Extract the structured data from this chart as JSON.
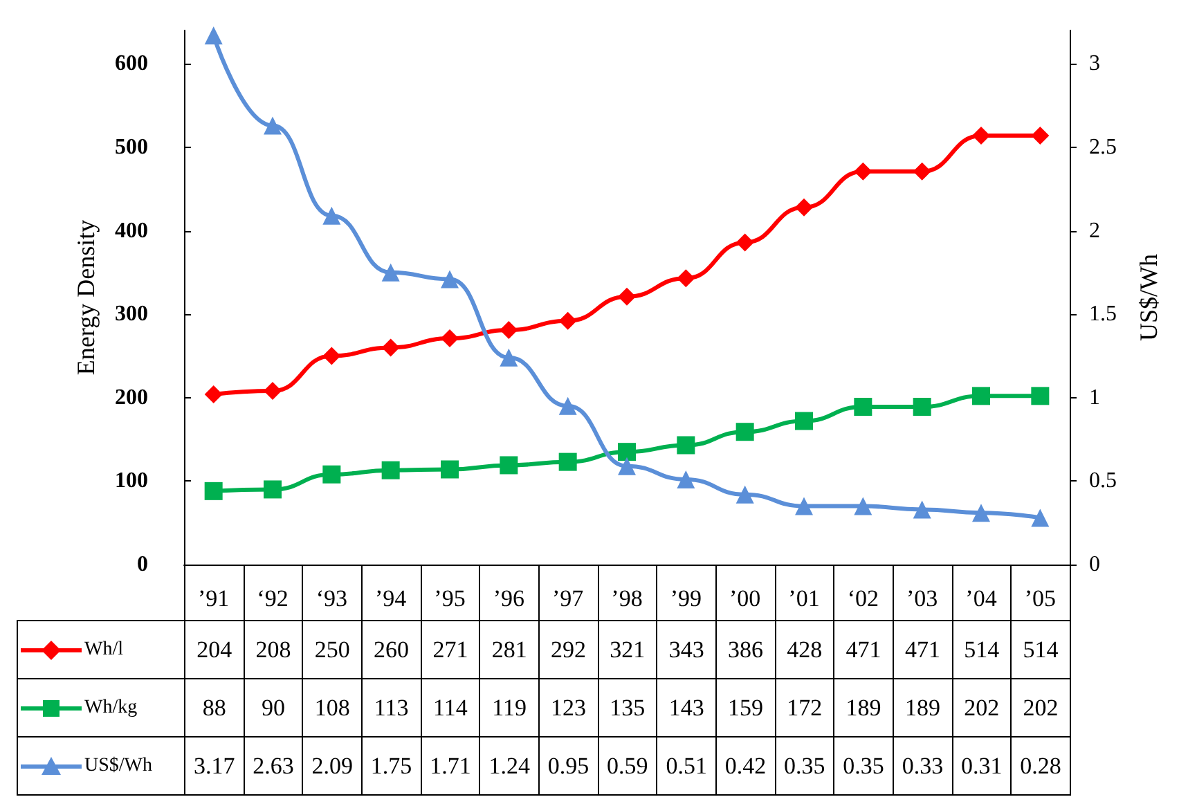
{
  "chart_data": {
    "type": "line",
    "ylabel": "Energy Density",
    "y2label": "US$/Wh",
    "categories": [
      "’91",
      "‘92",
      "‘93",
      "’94",
      "’95",
      "’96",
      "’97",
      "’98",
      "’99",
      "’00",
      "’01",
      "‘02",
      "’03",
      "’04",
      "’05"
    ],
    "series": [
      {
        "name": "Wh/l",
        "color": "#ff0000",
        "marker": "diamond",
        "values": [
          204,
          208,
          250,
          260,
          271,
          281,
          292,
          321,
          343,
          386,
          428,
          471,
          471,
          514,
          514
        ]
      },
      {
        "name": "Wh/kg",
        "color": "#00b050",
        "marker": "square",
        "values": [
          88,
          90,
          108,
          113,
          114,
          119,
          123,
          135,
          143,
          159,
          172,
          189,
          189,
          202,
          202
        ]
      },
      {
        "name": "US$/Wh",
        "color": "#5b8fd8",
        "marker": "triangle",
        "axis": "y2",
        "values": [
          3.17,
          2.63,
          2.09,
          1.75,
          1.71,
          1.24,
          0.95,
          0.59,
          0.51,
          0.42,
          0.35,
          0.35,
          0.33,
          0.31,
          0.28
        ]
      }
    ],
    "ylim": [
      0,
      640
    ],
    "yticks": [
      0,
      100,
      200,
      300,
      400,
      500,
      600
    ],
    "y2lim": [
      0,
      3.2
    ],
    "y2ticks": [
      0,
      0.5,
      1,
      1.5,
      2,
      2.5,
      3
    ],
    "data_labels": true,
    "grid": false,
    "legend": "bottom left"
  }
}
